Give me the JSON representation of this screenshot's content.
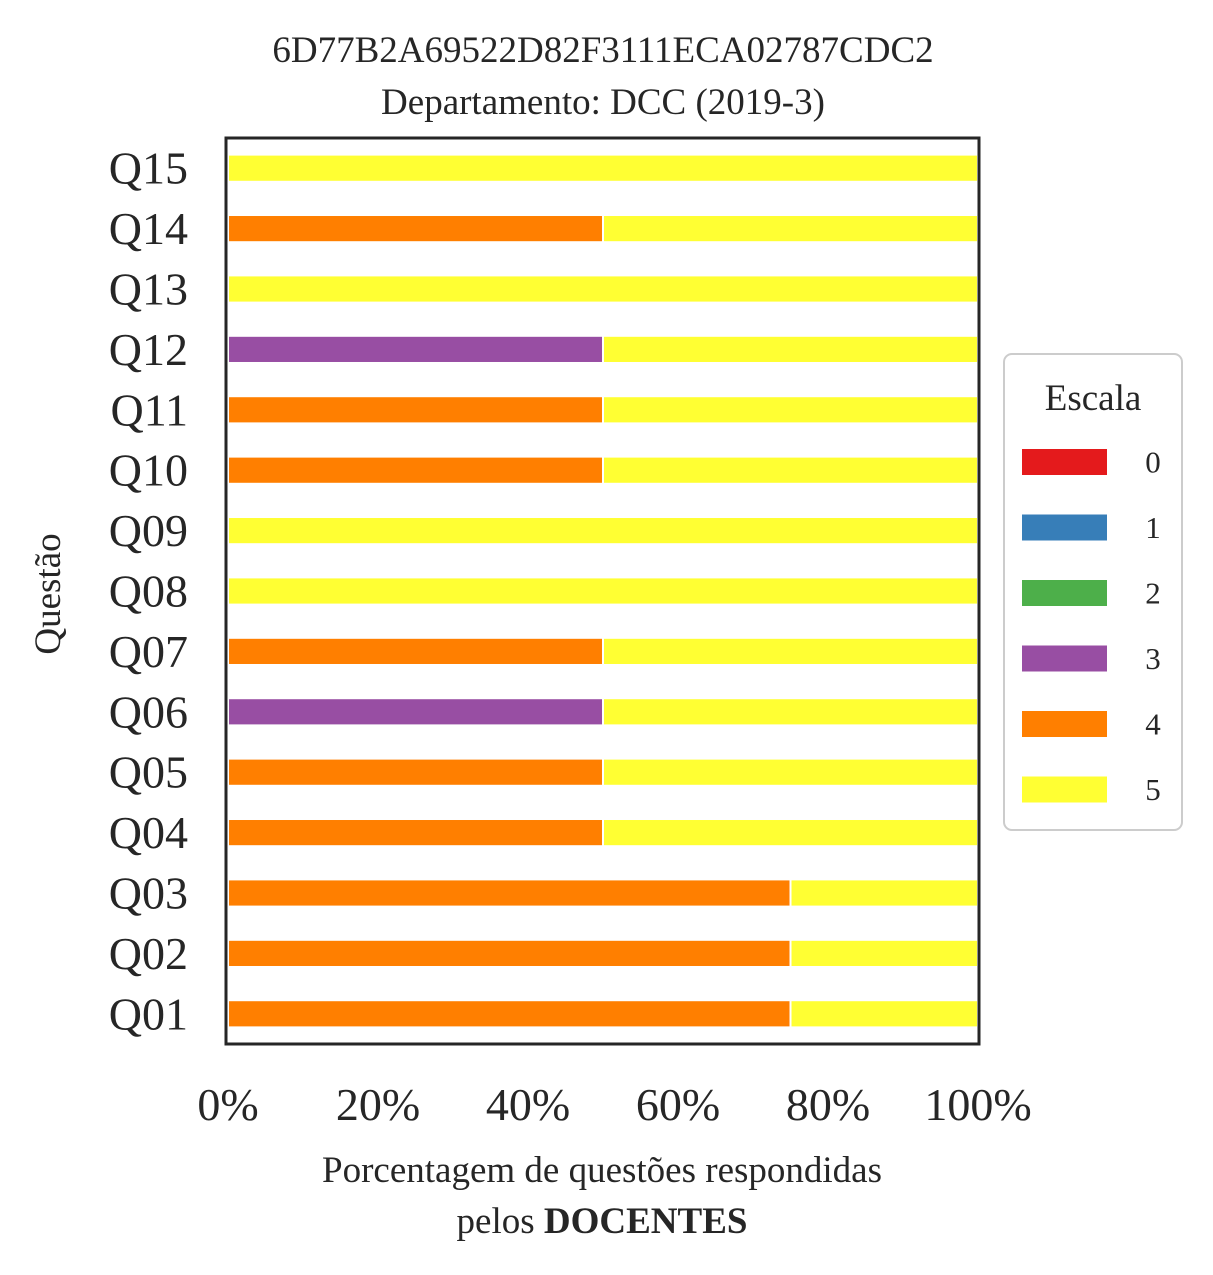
{
  "chart_data": {
    "type": "bar",
    "orientation": "horizontal",
    "stacked": true,
    "title": "6D77B2A69522D82F3111ECA02787CDC2",
    "subtitle": "Departamento: DCC (2019-3)",
    "ylabel": "Questão",
    "xlabel_line1": "Porcentagem de questões respondidas",
    "xlabel_line2_prefix": "pelos",
    "xlabel_line2_bold": "DOCENTES",
    "xlim": [
      0,
      100
    ],
    "xticks": [
      "0%",
      "20%",
      "40%",
      "60%",
      "80%",
      "100%"
    ],
    "xtick_values": [
      0,
      20,
      40,
      60,
      80,
      100
    ],
    "categories": [
      "Q01",
      "Q02",
      "Q03",
      "Q04",
      "Q05",
      "Q06",
      "Q07",
      "Q08",
      "Q09",
      "Q10",
      "Q11",
      "Q12",
      "Q13",
      "Q14",
      "Q15"
    ],
    "legend_title": "Escala",
    "legend_position": "center-right outside",
    "grid": false,
    "series": [
      {
        "name": "0",
        "color": "#e41a1c",
        "values": [
          0,
          0,
          0,
          0,
          0,
          0,
          0,
          0,
          0,
          0,
          0,
          0,
          0,
          0,
          0
        ]
      },
      {
        "name": "1",
        "color": "#377eb8",
        "values": [
          0,
          0,
          0,
          0,
          0,
          0,
          0,
          0,
          0,
          0,
          0,
          0,
          0,
          0,
          0
        ]
      },
      {
        "name": "2",
        "color": "#4daf4a",
        "values": [
          0,
          0,
          0,
          0,
          0,
          0,
          0,
          0,
          0,
          0,
          0,
          0,
          0,
          0,
          0
        ]
      },
      {
        "name": "3",
        "color": "#984ea3",
        "values": [
          0,
          0,
          0,
          0,
          0,
          50,
          0,
          0,
          0,
          0,
          0,
          50,
          0,
          0,
          0
        ]
      },
      {
        "name": "4",
        "color": "#ff7f00",
        "values": [
          75,
          75,
          75,
          50,
          50,
          0,
          50,
          0,
          0,
          50,
          50,
          0,
          0,
          50,
          0
        ]
      },
      {
        "name": "5",
        "color": "#ffff33",
        "values": [
          25,
          25,
          25,
          50,
          50,
          50,
          50,
          100,
          100,
          50,
          50,
          50,
          100,
          50,
          100
        ]
      }
    ]
  }
}
